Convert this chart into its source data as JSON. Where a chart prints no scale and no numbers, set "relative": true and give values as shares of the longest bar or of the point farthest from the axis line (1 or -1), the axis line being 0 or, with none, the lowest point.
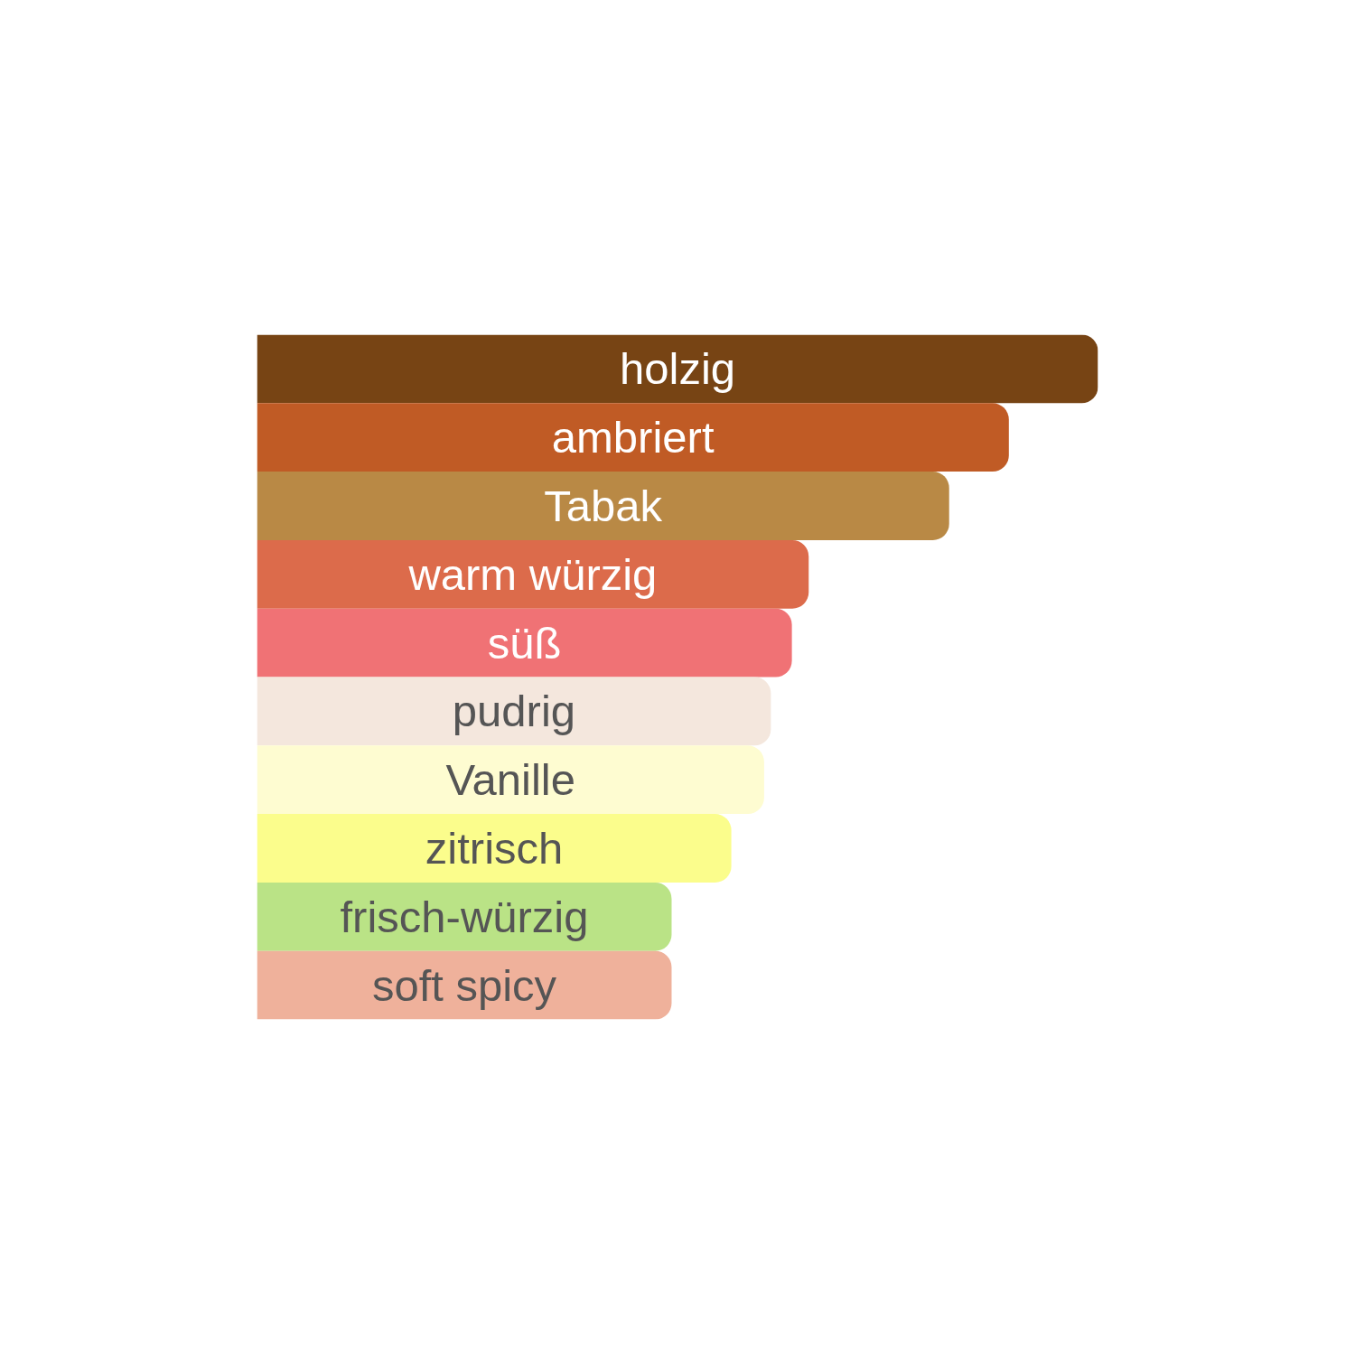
{
  "chart_data": {
    "type": "bar",
    "orientation": "horizontal",
    "relative": true,
    "categories": [
      "holzig",
      "ambriert",
      "Tabak",
      "warm würzig",
      "süß",
      "pudrig",
      "Vanille",
      "zitrisch",
      "frisch-würzig",
      "soft spicy"
    ],
    "values": [
      1,
      0.894,
      0.823,
      0.656,
      0.636,
      0.611,
      0.603,
      0.564,
      0.493,
      0.493
    ],
    "colors": [
      "#774414",
      "#c05b25",
      "#b98945",
      "#dc6b4b",
      "#f07275",
      "#f4e7dd",
      "#fefcd1",
      "#fbfd8c",
      "#bae386",
      "#efb19b"
    ],
    "grid": false
  }
}
